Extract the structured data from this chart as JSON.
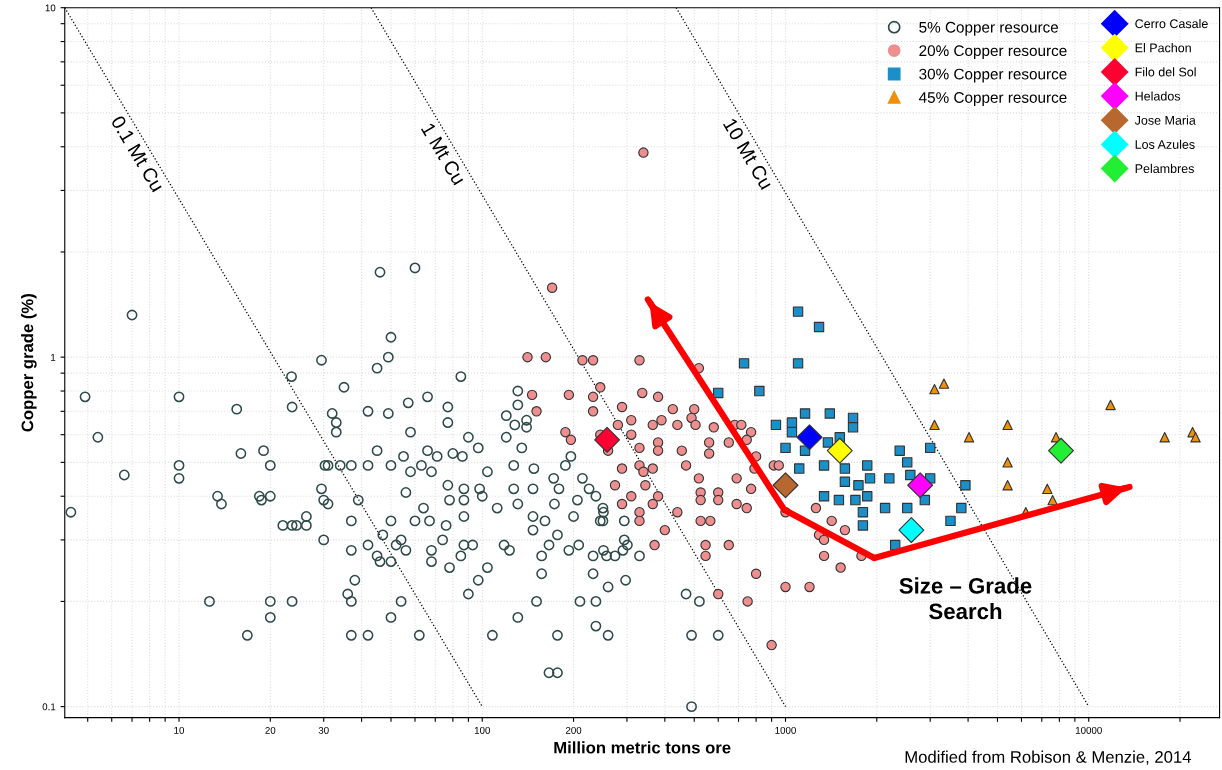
{
  "chart_data": {
    "type": "scatter",
    "xlabel": "Million metric tons ore",
    "ylabel": "Copper grade (%)",
    "annotations": [
      "Size – Grade\nSearch",
      "Modified from Robison & Menzie, 2014"
    ],
    "xlim": [
      4.2,
      27000
    ],
    "ylim": [
      0.093,
      10
    ],
    "log": "xy",
    "grid": true,
    "legend": "top right",
    "xticks": [
      {
        "value": 5,
        "label": null
      },
      {
        "value": 6,
        "label": null
      },
      {
        "value": 7,
        "label": null
      },
      {
        "value": 8,
        "label": null
      },
      {
        "value": 9,
        "label": null
      },
      10,
      20,
      30,
      {
        "value": 40,
        "label": null
      },
      {
        "value": 50,
        "label": null
      },
      {
        "value": 60,
        "label": null
      },
      {
        "value": 70,
        "label": null
      },
      {
        "value": 80,
        "label": null
      },
      {
        "value": 90,
        "label": null
      },
      100,
      200,
      {
        "value": 300,
        "label": null
      },
      {
        "value": 400,
        "label": null
      },
      {
        "value": 500,
        "label": null
      },
      {
        "value": 600,
        "label": null
      },
      {
        "value": 700,
        "label": null
      },
      {
        "value": 800,
        "label": null
      },
      {
        "value": 900,
        "label": null
      },
      1000,
      {
        "value": 2000,
        "label": null
      },
      {
        "value": 3000,
        "label": null
      },
      {
        "value": 4000,
        "label": null
      },
      {
        "value": 5000,
        "label": null
      },
      {
        "value": 6000,
        "label": null
      },
      {
        "value": 7000,
        "label": null
      },
      {
        "value": 8000,
        "label": null
      },
      {
        "value": 9000,
        "label": null
      },
      10000,
      {
        "value": 20000,
        "label": null
      }
    ],
    "yticks": [
      0.1,
      {
        "value": 0.2,
        "label": null
      },
      {
        "value": 0.3,
        "label": null
      },
      {
        "value": 0.4,
        "label": null
      },
      {
        "value": 0.5,
        "label": null
      },
      {
        "value": 0.6,
        "label": null
      },
      {
        "value": 0.7,
        "label": null
      },
      {
        "value": 0.8,
        "label": null
      },
      {
        "value": 0.9,
        "label": null
      },
      1,
      {
        "value": 2,
        "label": null
      },
      {
        "value": 3,
        "label": null
      },
      {
        "value": 4,
        "label": null
      },
      {
        "value": 5,
        "label": null
      },
      {
        "value": 6,
        "label": null
      },
      {
        "value": 7,
        "label": null
      },
      {
        "value": 8,
        "label": null
      },
      {
        "value": 9,
        "label": null
      },
      10
    ],
    "series": [
      {
        "type": "line",
        "name": "0.1 Mt Cu",
        "color": "#000000",
        "line_style": "dotted",
        "marker": "none",
        "x": [
          4.2,
          100
        ],
        "values": [
          10,
          0.1
        ]
      },
      {
        "type": "line",
        "name": "1 Mt Cu",
        "color": "#000000",
        "line_style": "dotted",
        "marker": "none",
        "x": [
          43,
          1000
        ],
        "values": [
          10,
          0.1
        ]
      },
      {
        "type": "line",
        "name": "10 Mt Cu",
        "color": "#000000",
        "line_style": "dotted",
        "marker": "none",
        "x": [
          436,
          10000
        ],
        "values": [
          10,
          0.1
        ]
      },
      {
        "name": "5% Copper resource",
        "color": "#2e4a48",
        "marker": "circle",
        "x": [
          4.4,
          4.9,
          5.4,
          6.6,
          7.0,
          10,
          10,
          10,
          12.6,
          13.4,
          13.8,
          15.5,
          16,
          16.8,
          18.4,
          18.7,
          19,
          20,
          20,
          20,
          20,
          22,
          23.5,
          23.6,
          23.6,
          24.4,
          23.6,
          26.3,
          26.3,
          29.5,
          29.5,
          30,
          30,
          30.3,
          46,
          60,
          50,
          49,
          45,
          85,
          35,
          57,
          66,
          77,
          77,
          42,
          49,
          58,
          33,
          33,
          45,
          55,
          66,
          71,
          80,
          86,
          90,
          97,
          34,
          42,
          50,
          58,
          63,
          68,
          56,
          77,
          87,
          98,
          104,
          78,
          87,
          100,
          39,
          64,
          50,
          60,
          67,
          76,
          87,
          112,
          37,
          47,
          54,
          42,
          52,
          74,
          87,
          93,
          37,
          45,
          56,
          68,
          46,
          50,
          68,
          85,
          78,
          104,
          38,
          97,
          36,
          37,
          54,
          90,
          50,
          37,
          42,
          62,
          108,
          118,
          123,
          131,
          131,
          120,
          128,
          140,
          140,
          120,
          135,
          127,
          148,
          127,
          147,
          131,
          147,
          147,
          161,
          173,
          172,
          179,
          188,
          196,
          214,
          225,
          237,
          206,
          251,
          245,
          200,
          177,
          166,
          208,
          193,
          157,
          157,
          232,
          251,
          257,
          274,
          291,
          301,
          297,
          232,
          260,
          237,
          210,
          151,
          131,
          177,
          237,
          260,
          166,
          177,
          32,
          31,
          37,
          31,
          250,
          250,
          294,
          294,
          330,
          470,
          520,
          490,
          600,
          490
        ],
        "values": [
          0.36,
          0.77,
          0.59,
          0.46,
          1.32,
          0.77,
          0.49,
          0.45,
          0.2,
          0.4,
          0.38,
          0.71,
          0.53,
          0.16,
          0.4,
          0.39,
          0.54,
          0.49,
          0.4,
          0.2,
          0.18,
          0.33,
          0.88,
          0.33,
          0.72,
          0.33,
          0.2,
          0.35,
          0.33,
          0.98,
          0.42,
          0.39,
          0.3,
          0.49,
          1.75,
          1.8,
          1.14,
          1.0,
          0.93,
          0.88,
          0.82,
          0.74,
          0.77,
          0.72,
          0.65,
          0.7,
          0.69,
          0.61,
          0.65,
          0.61,
          0.54,
          0.52,
          0.54,
          0.52,
          0.53,
          0.52,
          0.59,
          0.55,
          0.49,
          0.49,
          0.49,
          0.47,
          0.49,
          0.47,
          0.41,
          0.43,
          0.42,
          0.42,
          0.47,
          0.39,
          0.39,
          0.4,
          0.39,
          0.37,
          0.34,
          0.34,
          0.34,
          0.33,
          0.35,
          0.37,
          0.34,
          0.31,
          0.3,
          0.29,
          0.29,
          0.3,
          0.29,
          0.29,
          0.28,
          0.27,
          0.28,
          0.28,
          0.26,
          0.26,
          0.26,
          0.27,
          0.25,
          0.25,
          0.23,
          0.23,
          0.21,
          0.2,
          0.2,
          0.21,
          0.18,
          0.16,
          0.16,
          0.16,
          0.16,
          0.29,
          0.28,
          0.8,
          0.73,
          0.68,
          0.64,
          0.66,
          0.63,
          0.59,
          0.55,
          0.49,
          0.48,
          0.42,
          0.42,
          0.38,
          0.35,
          0.32,
          0.34,
          0.38,
          0.45,
          0.42,
          0.49,
          0.52,
          0.45,
          0.42,
          0.4,
          0.39,
          0.36,
          0.34,
          0.35,
          0.31,
          0.29,
          0.29,
          0.28,
          0.27,
          0.24,
          0.27,
          0.28,
          0.27,
          0.27,
          0.28,
          0.29,
          0.23,
          0.24,
          0.22,
          0.2,
          0.2,
          0.2,
          0.18,
          0.16,
          0.17,
          0.16,
          0.125,
          0.125,
          0.69,
          0.49,
          0.49,
          0.38,
          0.37,
          0.34,
          0.34,
          0.3,
          0.27,
          0.21,
          0.2,
          0.16,
          0.16,
          0.1
        ]
      },
      {
        "name": "20% Copper resource",
        "color": "#ee8e8e",
        "marker": "circle",
        "x": [
          340,
          170,
          141,
          162,
          214,
          232,
          245,
          146,
          193,
          232,
          151,
          232,
          289,
          280,
          188,
          196,
          245,
          260,
          289,
          274,
          289,
          330,
          518,
          337,
          380,
          425,
          500,
          310,
          365,
          390,
          440,
          490,
          505,
          580,
          680,
          715,
          770,
          310,
          380,
          380,
          455,
          560,
          560,
          650,
          745,
          800,
          330,
          330,
          340,
          365,
          470,
          790,
          915,
          950,
          345,
          518,
          690,
          770,
          525,
          600,
          310,
          380,
          525,
          600,
          690,
          745,
          365,
          330,
          330,
          440,
          525,
          565,
          400,
          1000,
          370,
          545,
          650,
          545,
          800,
          600,
          750,
          1000,
          1200,
          900,
          1260,
          1420,
          1570,
          1290,
          1340,
          1340,
          1520,
          1780
        ],
        "values": [
          3.85,
          1.58,
          1.0,
          1.0,
          0.98,
          0.98,
          0.82,
          0.78,
          0.78,
          0.77,
          0.7,
          0.7,
          0.72,
          0.64,
          0.61,
          0.58,
          0.6,
          0.54,
          0.48,
          0.43,
          0.38,
          0.98,
          0.93,
          0.79,
          0.77,
          0.71,
          0.71,
          0.66,
          0.64,
          0.66,
          0.64,
          0.67,
          0.64,
          0.63,
          0.64,
          0.64,
          0.61,
          0.6,
          0.57,
          0.54,
          0.54,
          0.57,
          0.53,
          0.57,
          0.58,
          0.52,
          0.55,
          0.49,
          0.47,
          0.48,
          0.49,
          0.48,
          0.49,
          0.49,
          0.43,
          0.45,
          0.45,
          0.42,
          0.41,
          0.41,
          0.4,
          0.4,
          0.39,
          0.39,
          0.38,
          0.37,
          0.38,
          0.36,
          0.34,
          0.36,
          0.34,
          0.34,
          0.32,
          0.36,
          0.29,
          0.29,
          0.29,
          0.27,
          0.24,
          0.21,
          0.2,
          0.22,
          0.22,
          0.15,
          0.37,
          0.34,
          0.32,
          0.31,
          0.3,
          0.27,
          0.25,
          0.27
        ]
      },
      {
        "name": "30% Copper resource",
        "color": "#1a8fc8",
        "marker": "square",
        "x": [
          1100,
          1290,
          730,
          1100,
          600,
          820,
          1160,
          1400,
          1670,
          1670,
          930,
          1050,
          1050,
          1000,
          1160,
          1380,
          1510,
          1340,
          1110,
          1570,
          1860,
          1900,
          1570,
          1740,
          1860,
          1340,
          1500,
          1700,
          1800,
          2200,
          1800,
          2300,
          2380,
          2520,
          3000,
          2580,
          3000,
          3920,
          2880,
          3800,
          2130,
          2520,
          3500
        ],
        "values": [
          1.35,
          1.22,
          0.96,
          0.96,
          0.79,
          0.8,
          0.69,
          0.69,
          0.67,
          0.63,
          0.64,
          0.65,
          0.61,
          0.55,
          0.54,
          0.57,
          0.59,
          0.49,
          0.48,
          0.48,
          0.49,
          0.45,
          0.44,
          0.43,
          0.4,
          0.4,
          0.39,
          0.39,
          0.36,
          0.45,
          0.33,
          0.29,
          0.54,
          0.5,
          0.55,
          0.46,
          0.45,
          0.43,
          0.39,
          0.37,
          0.37,
          0.37,
          0.34
        ]
      },
      {
        "name": "45% Copper resource",
        "color": "#f0900a",
        "marker": "triangle",
        "x": [
          3100,
          3330,
          3100,
          4030,
          5400,
          5400,
          5400,
          6200,
          7300,
          7600,
          7800,
          11800,
          17800,
          22000,
          22500
        ],
        "values": [
          0.81,
          0.84,
          0.64,
          0.59,
          0.64,
          0.5,
          0.43,
          0.36,
          0.42,
          0.39,
          0.59,
          0.73,
          0.59,
          0.61,
          0.59
        ]
      },
      {
        "name": "Cerro Casale",
        "color": "#0000ff",
        "marker": "diamond",
        "x": [
          1200
        ],
        "values": [
          0.59
        ]
      },
      {
        "name": "El Pachon",
        "color": "#ffff00",
        "marker": "diamond",
        "x": [
          1510
        ],
        "values": [
          0.54
        ]
      },
      {
        "name": "Filo del Sol",
        "color": "#ff0033",
        "marker": "diamond",
        "x": [
          258
        ],
        "values": [
          0.58
        ]
      },
      {
        "name": "Helados",
        "color": "#ff00ff",
        "marker": "diamond",
        "x": [
          2780
        ],
        "values": [
          0.43
        ]
      },
      {
        "name": "Jose Maria",
        "color": "#b8682e",
        "marker": "diamond",
        "x": [
          1000
        ],
        "values": [
          0.43
        ]
      },
      {
        "name": "Los Azules",
        "color": "#00ffff",
        "marker": "diamond",
        "x": [
          2600
        ],
        "values": [
          0.32
        ]
      },
      {
        "name": "Pelambres",
        "color": "#22ee33",
        "marker": "diamond",
        "x": [
          8100
        ],
        "values": [
          0.54
        ]
      }
    ]
  }
}
